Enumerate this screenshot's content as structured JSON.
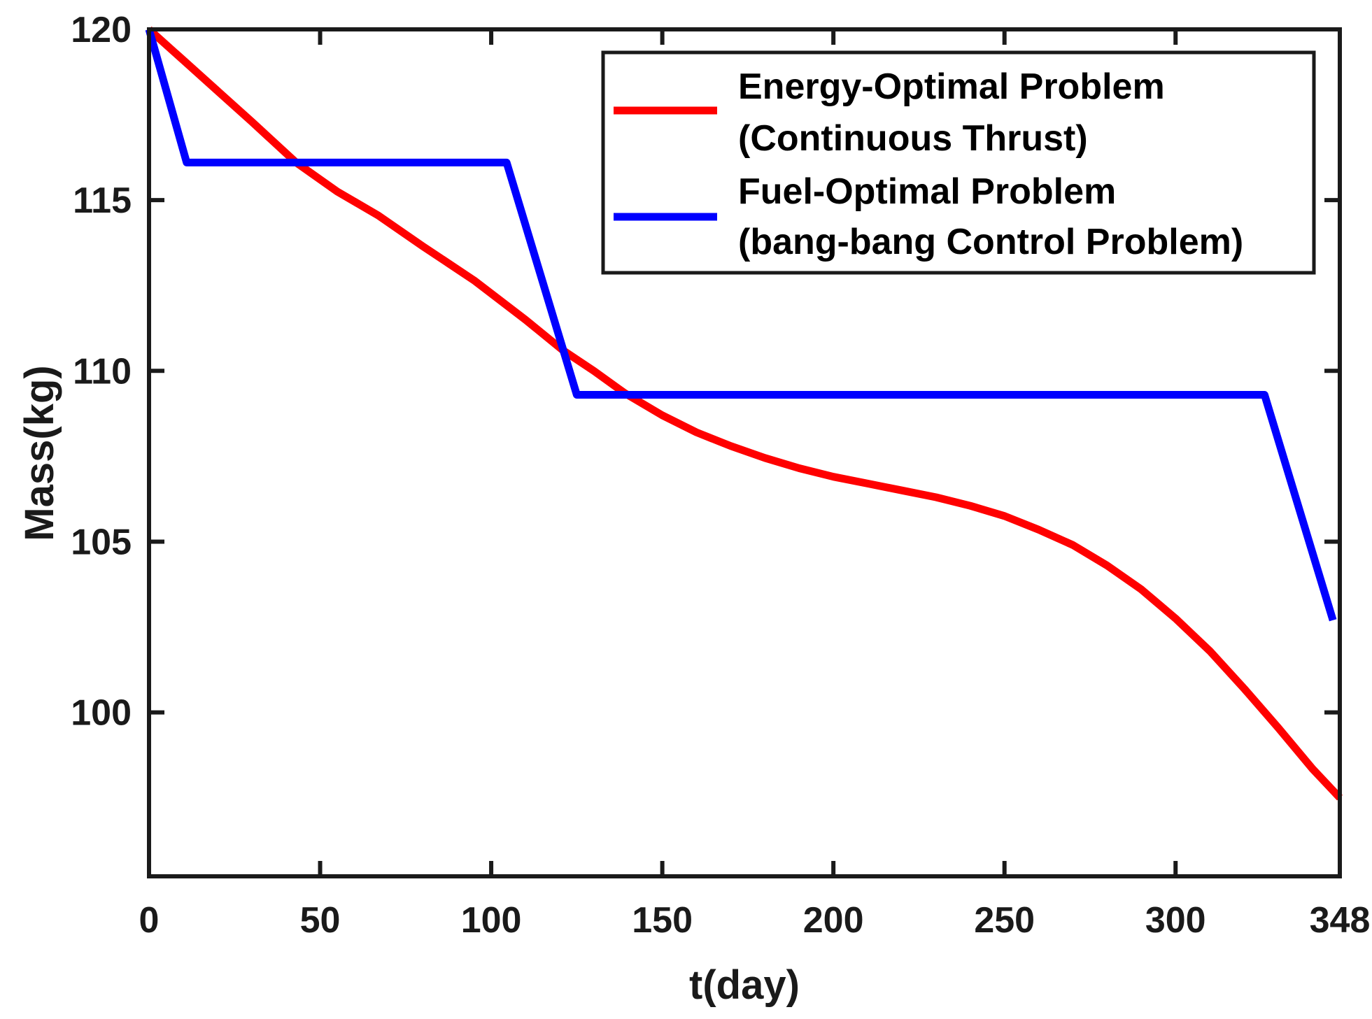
{
  "figure": {
    "background": "#ffffff",
    "axis_color": "#1a1a1a"
  },
  "axes": {
    "xlabel": "t(day)",
    "ylabel": "Mass(kg)",
    "xlim": [
      0,
      348
    ],
    "ylim": [
      95.2,
      120
    ],
    "x_ticks": [
      0,
      50,
      100,
      150,
      200,
      250,
      300,
      348
    ],
    "y_ticks": [
      100,
      105,
      110,
      115,
      120
    ],
    "grid": false,
    "box": true,
    "tick_direction": "in"
  },
  "legend": {
    "position": "north",
    "border_color": "#1a1a1a",
    "entries": [
      {
        "color": "#ff0000",
        "label_line1": "Energy-Optimal Problem",
        "label_line2": "(Continuous Thrust)"
      },
      {
        "color": "#0000ff",
        "label_line1": "Fuel-Optimal Problem",
        "label_line2": "(bang-bang Control Problem)"
      }
    ]
  },
  "chart_data": {
    "type": "line",
    "xlabel": "t(day)",
    "ylabel": "Mass(kg)",
    "xlim": [
      0,
      348
    ],
    "ylim": [
      95.2,
      120
    ],
    "series": [
      {
        "name": "Energy-Optimal Problem (Continuous Thrust)",
        "color": "#ff0000",
        "points": [
          [
            0,
            120
          ],
          [
            10,
            119.1
          ],
          [
            20,
            118.2
          ],
          [
            30,
            117.3
          ],
          [
            43,
            116.1
          ],
          [
            55,
            115.25
          ],
          [
            67,
            114.55
          ],
          [
            80,
            113.65
          ],
          [
            95,
            112.65
          ],
          [
            110,
            111.5
          ],
          [
            121,
            110.6
          ],
          [
            130,
            110.0
          ],
          [
            139,
            109.35
          ],
          [
            150,
            108.7
          ],
          [
            160,
            108.2
          ],
          [
            170,
            107.8
          ],
          [
            180,
            107.45
          ],
          [
            190,
            107.15
          ],
          [
            200,
            106.9
          ],
          [
            210,
            106.7
          ],
          [
            220,
            106.5
          ],
          [
            230,
            106.3
          ],
          [
            240,
            106.05
          ],
          [
            250,
            105.75
          ],
          [
            260,
            105.35
          ],
          [
            270,
            104.9
          ],
          [
            280,
            104.3
          ],
          [
            290,
            103.6
          ],
          [
            300,
            102.75
          ],
          [
            310,
            101.8
          ],
          [
            320,
            100.7
          ],
          [
            330,
            99.55
          ],
          [
            340,
            98.35
          ],
          [
            348,
            97.5
          ]
        ]
      },
      {
        "name": "Fuel-Optimal Problem (bang-bang Control Problem)",
        "color": "#0000ff",
        "points": [
          [
            0,
            120
          ],
          [
            11,
            116.1
          ],
          [
            104.5,
            116.1
          ],
          [
            125,
            109.3
          ],
          [
            326,
            109.3
          ],
          [
            346,
            102.7
          ]
        ]
      }
    ]
  }
}
